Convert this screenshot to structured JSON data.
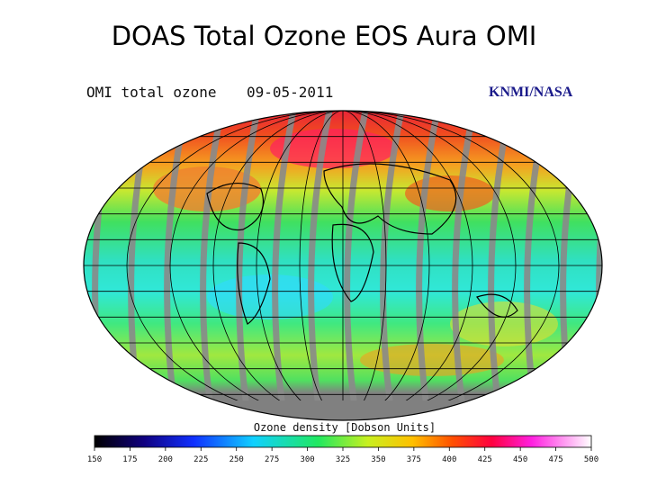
{
  "title": "DOAS Total Ozone EOS Aura OMI",
  "map": {
    "label": "OMI total ozone",
    "date": "09-05-2011",
    "credit": "KNMI/NASA"
  },
  "colorbar": {
    "label": "Ozone density [Dobson Units]",
    "lim": [
      150,
      500
    ],
    "ticks": [
      150,
      175,
      200,
      225,
      250,
      275,
      300,
      325,
      350,
      375,
      400,
      425,
      450,
      475,
      500
    ]
  }
}
